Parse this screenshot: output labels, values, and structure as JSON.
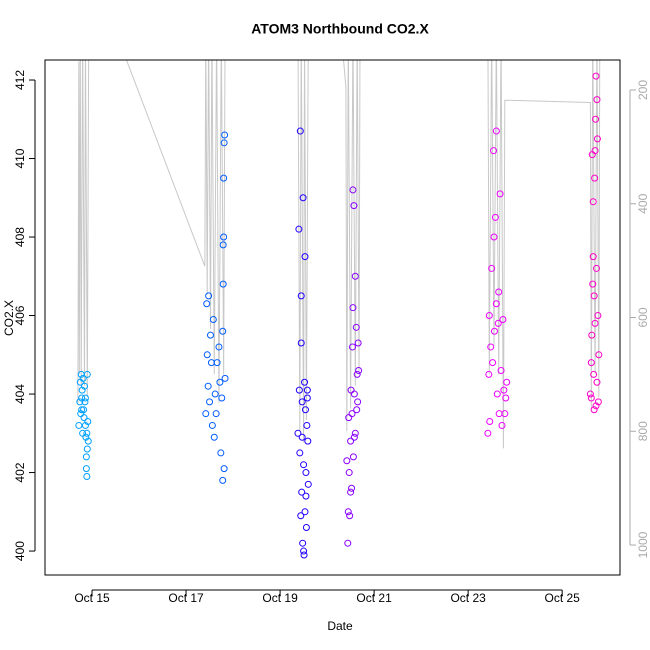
{
  "chart_data": {
    "type": "scatter",
    "title": "ATOM3 Northbound CO2.X",
    "x_label": "Date",
    "y_label": "CO2.X",
    "xlim": [
      14.0,
      26.23
    ],
    "xticks": [
      {
        "value": 15,
        "label": "Oct 15"
      },
      {
        "value": 17,
        "label": "Oct 17"
      },
      {
        "value": 19,
        "label": "Oct 19"
      },
      {
        "value": 21,
        "label": "Oct 21"
      },
      {
        "value": 23,
        "label": "Oct 23"
      },
      {
        "value": 25,
        "label": "Oct 25"
      }
    ],
    "ylim": [
      399.39,
      412.51
    ],
    "yticks": [
      400,
      402,
      404,
      406,
      408,
      410,
      412
    ],
    "y2lim": [
      1052.7,
      147.3
    ],
    "y2ticks": [
      200,
      400,
      600,
      800,
      1000
    ],
    "series": [
      {
        "color": "#00a0ff",
        "x": [
          14.72,
          14.74,
          14.75,
          14.76,
          14.77,
          14.78,
          14.79,
          14.8,
          14.81,
          14.82,
          14.83,
          14.84,
          14.85,
          14.86,
          14.87,
          14.88,
          14.89,
          14.9,
          14.91,
          14.88,
          14.9,
          14.86,
          14.78,
          14.92,
          14.89
        ],
        "values": [
          403.2,
          403.8,
          404.3,
          403.5,
          404.5,
          403.9,
          404.1,
          403.0,
          404.4,
          403.6,
          403.4,
          404.2,
          403.8,
          403.2,
          402.9,
          402.4,
          401.9,
          402.6,
          403.3,
          402.1,
          404.5,
          403.9,
          403.6,
          402.8,
          403.0
        ]
      },
      {
        "color": "#005cff",
        "x": [
          17.42,
          17.44,
          17.45,
          17.47,
          17.48,
          17.5,
          17.52,
          17.54,
          17.56,
          17.58,
          17.6,
          17.62,
          17.64,
          17.66,
          17.7,
          17.72,
          17.74,
          17.76,
          17.78,
          17.79,
          17.8,
          17.81,
          17.82,
          17.8,
          17.79,
          17.83,
          17.78,
          17.81
        ],
        "values": [
          403.5,
          406.3,
          405.0,
          404.2,
          406.5,
          403.8,
          405.5,
          404.8,
          403.2,
          405.9,
          402.9,
          404.0,
          403.5,
          404.8,
          405.2,
          404.3,
          402.5,
          403.9,
          405.6,
          407.8,
          408.0,
          410.4,
          410.6,
          409.5,
          406.8,
          404.4,
          401.8,
          402.1
        ]
      },
      {
        "color": "#2000ff",
        "x": [
          19.38,
          19.4,
          19.41,
          19.42,
          19.43,
          19.44,
          19.45,
          19.46,
          19.47,
          19.48,
          19.49,
          19.5,
          19.51,
          19.52,
          19.53,
          19.54,
          19.55,
          19.56,
          19.57,
          19.58,
          19.59,
          19.6,
          19.45,
          19.5,
          19.53,
          19.47,
          19.55,
          19.58
        ],
        "values": [
          403.0,
          408.2,
          404.1,
          402.5,
          410.7,
          400.9,
          405.3,
          401.5,
          403.8,
          400.2,
          409.0,
          402.2,
          399.9,
          404.3,
          401.0,
          403.6,
          402.0,
          400.6,
          403.2,
          404.1,
          402.8,
          401.7,
          406.5,
          400.0,
          407.5,
          402.9,
          401.4,
          403.9
        ]
      },
      {
        "color": "#8a00ff",
        "x": [
          20.42,
          20.44,
          20.45,
          20.46,
          20.47,
          20.48,
          20.5,
          20.51,
          20.52,
          20.53,
          20.54,
          20.55,
          20.56,
          20.57,
          20.58,
          20.6,
          20.62,
          20.64,
          20.65,
          20.66,
          20.67,
          20.5,
          20.55,
          20.6,
          20.58,
          20.63
        ],
        "values": [
          402.3,
          400.2,
          401.0,
          403.4,
          402.0,
          400.9,
          402.8,
          404.1,
          401.6,
          403.5,
          405.2,
          409.2,
          402.4,
          408.8,
          404.0,
          403.0,
          405.7,
          404.5,
          403.8,
          405.3,
          404.6,
          401.5,
          406.2,
          407.0,
          402.9,
          403.6
        ]
      },
      {
        "color": "#ee00ff",
        "x": [
          23.42,
          23.44,
          23.45,
          23.46,
          23.48,
          23.5,
          23.52,
          23.54,
          23.56,
          23.58,
          23.6,
          23.62,
          23.64,
          23.66,
          23.68,
          23.7,
          23.72,
          23.74,
          23.76,
          23.78,
          23.8,
          23.82,
          23.55,
          23.6,
          23.65
        ],
        "values": [
          403.0,
          404.5,
          406.0,
          403.3,
          405.2,
          407.2,
          404.8,
          410.2,
          405.6,
          408.5,
          406.3,
          404.0,
          405.8,
          403.5,
          409.1,
          404.6,
          403.2,
          405.9,
          404.1,
          403.5,
          403.9,
          404.3,
          408.0,
          410.7,
          406.6
        ]
      },
      {
        "color": "#ff00c8",
        "x": [
          25.6,
          25.62,
          25.63,
          25.64,
          25.65,
          25.66,
          25.67,
          25.68,
          25.69,
          25.7,
          25.71,
          25.72,
          25.73,
          25.74,
          25.75,
          25.76,
          25.77,
          25.78,
          25.62,
          25.66,
          25.7,
          25.74,
          25.68,
          25.72
        ],
        "values": [
          404.0,
          403.9,
          405.5,
          410.1,
          406.8,
          408.9,
          404.5,
          403.6,
          409.5,
          405.8,
          411.0,
          412.1,
          407.2,
          404.3,
          410.5,
          406.0,
          403.8,
          405.0,
          404.8,
          407.5,
          410.2,
          411.5,
          406.5,
          403.7
        ]
      },
      {
        "type": "line",
        "axis": "y2",
        "color": "#c8c8c8",
        "x": [
          14.7,
          14.72,
          14.73,
          14.75,
          14.77,
          14.8,
          14.84,
          14.86,
          14.9,
          14.93,
          15.7,
          17.4,
          17.42,
          17.45,
          17.48,
          17.52,
          17.55,
          17.6,
          17.65,
          17.7,
          17.75,
          17.8,
          17.83,
          19.38,
          19.42,
          19.45,
          19.5,
          19.52,
          19.56,
          19.6,
          20.3,
          20.4,
          20.42,
          20.45,
          20.5,
          20.55,
          20.6,
          20.64,
          20.68,
          20.7,
          23.42,
          23.45,
          23.5,
          23.55,
          23.6,
          23.65,
          23.7,
          23.75,
          23.78,
          25.6,
          25.62,
          25.65,
          25.7,
          25.74,
          25.78,
          25.8
        ],
        "values": [
          750,
          150,
          700,
          100,
          720,
          100,
          720,
          100,
          740,
          100,
          140,
          510,
          100,
          560,
          100,
          620,
          100,
          700,
          100,
          750,
          100,
          700,
          100,
          100,
          800,
          100,
          820,
          100,
          780,
          100,
          100,
          195,
          800,
          100,
          760,
          100,
          720,
          100,
          700,
          100,
          100,
          700,
          100,
          650,
          100,
          700,
          100,
          830,
          218,
          222,
          760,
          100,
          700,
          100,
          740,
          100
        ]
      }
    ]
  }
}
